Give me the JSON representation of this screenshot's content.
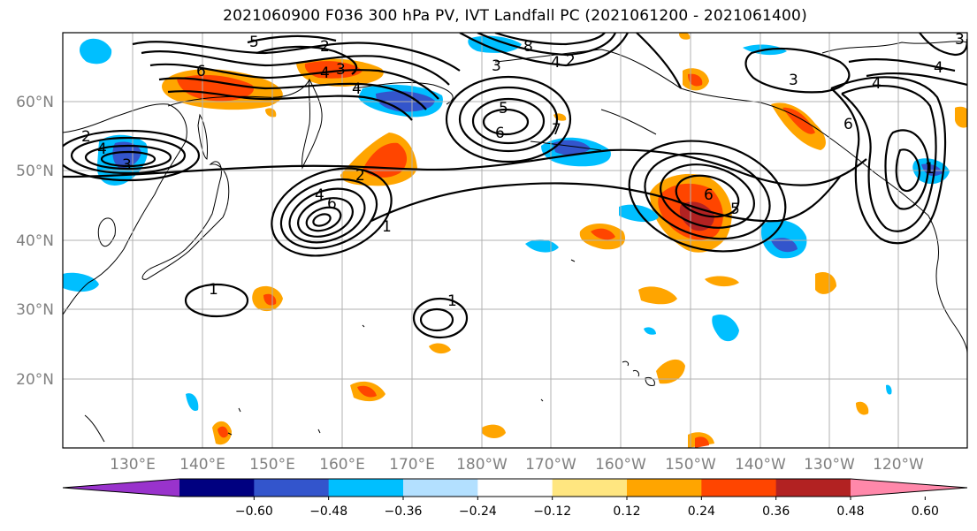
{
  "title": "2021060900 F036 300 hPa PV, IVT Landfall PC (2021061200 - 2021061400)",
  "lat_ticks": [
    "60°N",
    "50°N",
    "40°N",
    "30°N",
    "20°N"
  ],
  "lon_ticks": [
    "130°E",
    "140°E",
    "150°E",
    "160°E",
    "170°E",
    "180°W",
    "170°W",
    "160°W",
    "150°W",
    "140°W",
    "130°W",
    "120°W"
  ],
  "colorbar": {
    "tick_labels": [
      "−0.60",
      "−0.48",
      "−0.36",
      "−0.24",
      "−0.12",
      "0.12",
      "0.24",
      "0.36",
      "0.48",
      "0.60"
    ],
    "colors": [
      "#9933cc",
      "#000080",
      "#3355cc",
      "#00bfff",
      "#b3e0ff",
      "#ffffff",
      "#ffe680",
      "#ffa500",
      "#ff4500",
      "#b22222",
      "#ff88aa"
    ]
  },
  "pv_contour_labels": [
    "2",
    "5",
    "6",
    "2",
    "4",
    "3",
    "8",
    "4",
    "4",
    "3",
    "4",
    "3",
    "5",
    "6",
    "7",
    "2",
    "4",
    "3",
    "2",
    "4",
    "6",
    "1",
    "1",
    "1",
    "3",
    "4",
    "6",
    "6",
    "5",
    "1"
  ],
  "colors": {
    "positive_anomaly": "#ff4500",
    "negative_anomaly": "#00bfff",
    "grid": "#b0b0b0",
    "land": "#000000"
  }
}
